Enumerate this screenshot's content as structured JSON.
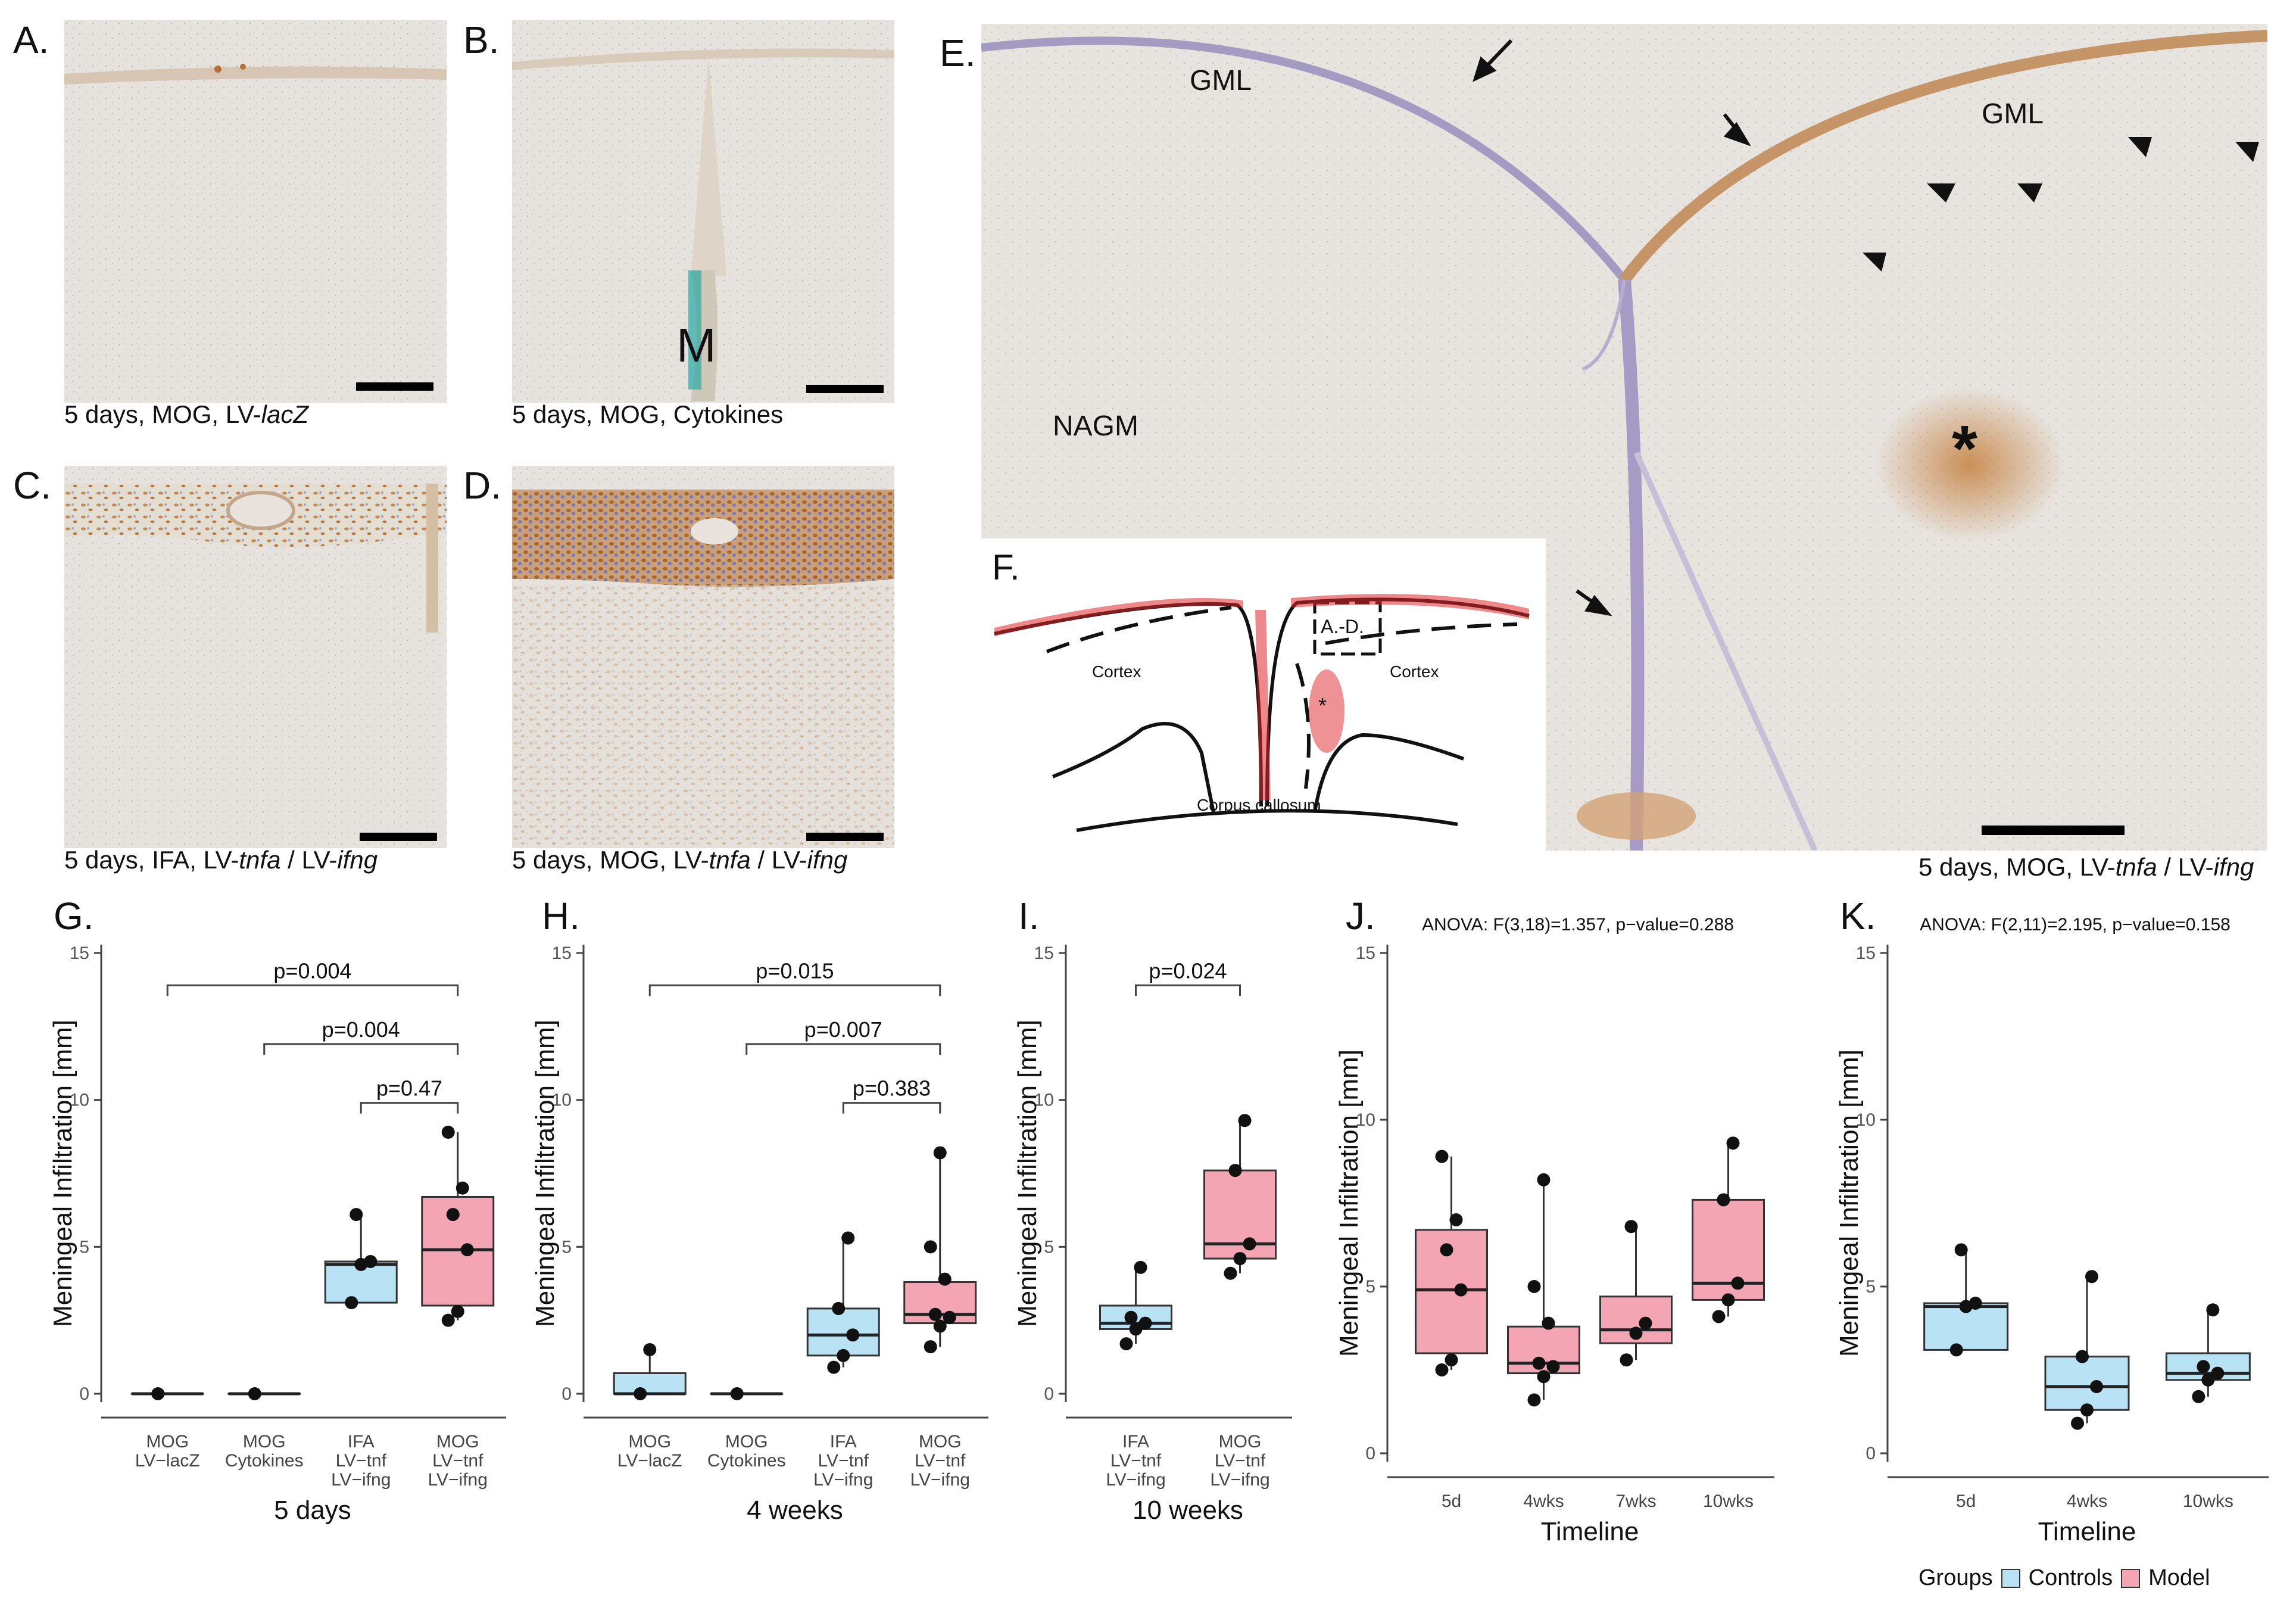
{
  "panels": {
    "A": {
      "letter": "A.",
      "caption_pre": "5 days, MOG, LV-",
      "caption_it": "lacZ",
      "caption_post": ""
    },
    "B": {
      "letter": "B.",
      "caption_pre": "5 days, MOG, Cytokines",
      "caption_it": "",
      "caption_post": "",
      "label": "M"
    },
    "C": {
      "letter": "C.",
      "caption_pre": "5 days, IFA, LV-",
      "caption_it": "tnfa",
      "caption_mid": " / LV-",
      "caption_it2": "ifng"
    },
    "D": {
      "letter": "D.",
      "caption_pre": "5 days, MOG, LV-",
      "caption_it": "tnfa",
      "caption_mid": " / LV-",
      "caption_it2": "ifng"
    },
    "E": {
      "letter": "E.",
      "caption_pre": "5 days, MOG, LV-",
      "caption_it": "tnfa",
      "caption_mid": " / LV-",
      "caption_it2": "ifng",
      "labels": {
        "gml_left": "GML",
        "gml_right": "GML",
        "nagm": "NAGM",
        "asterisk": "*"
      }
    },
    "F": {
      "letter": "F.",
      "labels": {
        "cortex_left": "Cortex",
        "cortex_right": "Cortex",
        "corpus": "Corpus callosum",
        "box": "A.-D.",
        "star": "*"
      }
    }
  },
  "ylabel": "Meningeal Infiltration [mm]",
  "colors": {
    "controls": "#b9e3f5",
    "model": "#f4a5b3",
    "outline": "#333333"
  },
  "legend": {
    "title": "Groups",
    "items": [
      "Controls",
      "Model"
    ]
  },
  "chart_data": [
    {
      "id": "G",
      "letter": "G.",
      "type": "box",
      "xlabel": "5 days",
      "ylim": [
        0,
        15
      ],
      "yticks": [
        0,
        5,
        10,
        15
      ],
      "categories": [
        "MOG\nLV−lacZ",
        "MOG\nCytokines",
        "IFA\nLV−tnf\nLV−ifng",
        "MOG\nLV−tnf\nLV−ifng"
      ],
      "boxes": [
        {
          "group": "controls",
          "min": 0,
          "q1": 0,
          "median": 0,
          "q3": 0,
          "max": 0,
          "points": [
            0
          ]
        },
        {
          "group": "controls",
          "min": 0,
          "q1": 0,
          "median": 0,
          "q3": 0,
          "max": 0,
          "points": [
            0
          ]
        },
        {
          "group": "controls",
          "min": 3.1,
          "q1": 3.1,
          "median": 4.4,
          "q3": 4.5,
          "max": 6.1,
          "points": [
            3.1,
            4.4,
            4.5,
            6.1
          ]
        },
        {
          "group": "model",
          "min": 2.5,
          "q1": 3.0,
          "median": 4.9,
          "q3": 6.7,
          "max": 8.9,
          "points": [
            2.5,
            2.8,
            4.9,
            6.1,
            7.0,
            8.9
          ]
        }
      ],
      "brackets": [
        {
          "from": 0,
          "to": 3,
          "y": 13.9,
          "label": "p=0.004"
        },
        {
          "from": 1,
          "to": 3,
          "y": 11.9,
          "label": "p=0.004"
        },
        {
          "from": 2,
          "to": 3,
          "y": 9.9,
          "label": "p=0.47"
        }
      ]
    },
    {
      "id": "H",
      "letter": "H.",
      "type": "box",
      "xlabel": "4 weeks",
      "ylim": [
        0,
        15
      ],
      "yticks": [
        0,
        5,
        10,
        15
      ],
      "categories": [
        "MOG\nLV−lacZ",
        "MOG\nCytokines",
        "IFA\nLV−tnf\nLV−ifng",
        "MOG\nLV−tnf\nLV−ifng"
      ],
      "boxes": [
        {
          "group": "controls",
          "min": 0,
          "q1": 0,
          "median": 0,
          "q3": 0.7,
          "max": 1.5,
          "points": [
            0,
            1.5
          ]
        },
        {
          "group": "controls",
          "min": 0,
          "q1": 0,
          "median": 0,
          "q3": 0,
          "max": 0,
          "points": [
            0
          ]
        },
        {
          "group": "controls",
          "min": 0.9,
          "q1": 1.3,
          "median": 2.0,
          "q3": 2.9,
          "max": 5.3,
          "points": [
            0.9,
            1.3,
            2.0,
            2.9,
            5.3
          ]
        },
        {
          "group": "model",
          "min": 1.6,
          "q1": 2.4,
          "median": 2.7,
          "q3": 3.8,
          "max": 8.2,
          "points": [
            1.6,
            2.3,
            2.6,
            2.7,
            3.9,
            5.0,
            8.2
          ]
        }
      ],
      "brackets": [
        {
          "from": 0,
          "to": 3,
          "y": 13.9,
          "label": "p=0.015"
        },
        {
          "from": 1,
          "to": 3,
          "y": 11.9,
          "label": "p=0.007"
        },
        {
          "from": 2,
          "to": 3,
          "y": 9.9,
          "label": "p=0.383"
        }
      ]
    },
    {
      "id": "I",
      "letter": "I.",
      "type": "box",
      "xlabel": "10 weeks",
      "ylim": [
        0,
        15
      ],
      "yticks": [
        0,
        5,
        10,
        15
      ],
      "categories": [
        "IFA\nLV−tnf\nLV−ifng",
        "MOG\nLV−tnf\nLV−ifng"
      ],
      "boxes": [
        {
          "group": "controls",
          "min": 1.7,
          "q1": 2.2,
          "median": 2.4,
          "q3": 3.0,
          "max": 4.3,
          "points": [
            1.7,
            2.2,
            2.4,
            2.6,
            4.3
          ]
        },
        {
          "group": "model",
          "min": 4.1,
          "q1": 4.6,
          "median": 5.1,
          "q3": 7.6,
          "max": 9.3,
          "points": [
            4.1,
            4.6,
            5.1,
            7.6,
            9.3
          ]
        }
      ],
      "brackets": [
        {
          "from": 0,
          "to": 1,
          "y": 13.9,
          "label": "p=0.024"
        }
      ]
    },
    {
      "id": "J",
      "letter": "J.",
      "type": "box",
      "xlabel": "Timeline",
      "ylim": [
        0,
        15
      ],
      "yticks": [
        0,
        5,
        10,
        15
      ],
      "title": "ANOVA: F(3,18)=1.357, p−value=0.288",
      "categories": [
        "5d",
        "4wks",
        "7wks",
        "10wks"
      ],
      "boxes": [
        {
          "group": "model",
          "min": 2.5,
          "q1": 3.0,
          "median": 4.9,
          "q3": 6.7,
          "max": 8.9,
          "points": [
            2.5,
            2.8,
            4.9,
            6.1,
            7.0,
            8.9
          ]
        },
        {
          "group": "model",
          "min": 1.6,
          "q1": 2.4,
          "median": 2.7,
          "q3": 3.8,
          "max": 8.2,
          "points": [
            1.6,
            2.3,
            2.6,
            2.7,
            3.9,
            5.0,
            8.2
          ]
        },
        {
          "group": "model",
          "min": 2.8,
          "q1": 3.3,
          "median": 3.7,
          "q3": 4.7,
          "max": 6.8,
          "points": [
            2.8,
            3.6,
            3.9,
            6.8
          ]
        },
        {
          "group": "model",
          "min": 4.1,
          "q1": 4.6,
          "median": 5.1,
          "q3": 7.6,
          "max": 9.3,
          "points": [
            4.1,
            4.6,
            5.1,
            7.6,
            9.3
          ]
        }
      ]
    },
    {
      "id": "K",
      "letter": "K.",
      "type": "box",
      "xlabel": "Timeline",
      "ylim": [
        0,
        15
      ],
      "yticks": [
        0,
        5,
        10,
        15
      ],
      "title": "ANOVA: F(2,11)=2.195, p−value=0.158",
      "categories": [
        "5d",
        "4wks",
        "10wks"
      ],
      "boxes": [
        {
          "group": "controls",
          "min": 3.1,
          "q1": 3.1,
          "median": 4.4,
          "q3": 4.5,
          "max": 6.1,
          "points": [
            3.1,
            4.4,
            4.5,
            6.1
          ]
        },
        {
          "group": "controls",
          "min": 0.9,
          "q1": 1.3,
          "median": 2.0,
          "q3": 2.9,
          "max": 5.3,
          "points": [
            0.9,
            1.3,
            2.0,
            2.9,
            5.3
          ]
        },
        {
          "group": "controls",
          "min": 1.7,
          "q1": 2.2,
          "median": 2.4,
          "q3": 3.0,
          "max": 4.3,
          "points": [
            1.7,
            2.2,
            2.4,
            2.6,
            4.3
          ]
        }
      ]
    }
  ]
}
